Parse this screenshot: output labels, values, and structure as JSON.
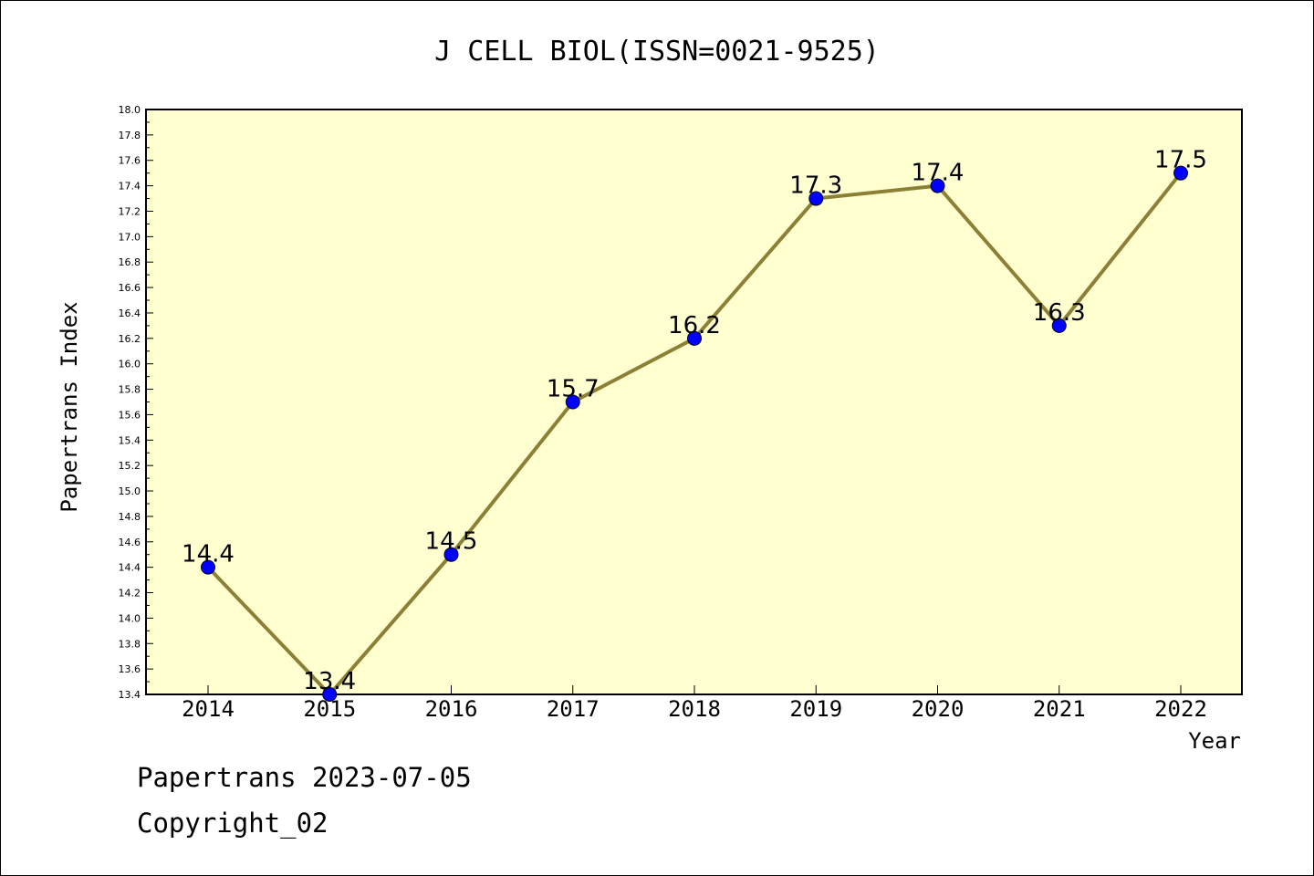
{
  "chart_data": {
    "type": "line",
    "title": "J CELL BIOL(ISSN=0021-9525)",
    "xlabel": "Year",
    "ylabel": "Papertrans Index",
    "categories": [
      "2014",
      "2015",
      "2016",
      "2017",
      "2018",
      "2019",
      "2020",
      "2021",
      "2022"
    ],
    "values": [
      14.4,
      13.4,
      14.5,
      15.7,
      16.2,
      17.3,
      17.4,
      16.3,
      17.5
    ],
    "data_labels": [
      "14.4",
      "13.4",
      "14.5",
      "15.7",
      "16.2",
      "17.3",
      "17.4",
      "16.3",
      "17.5"
    ],
    "ylim": [
      13.4,
      18.0
    ],
    "yticks": [
      "13.4",
      "13.6",
      "13.8",
      "14.0",
      "14.2",
      "14.4",
      "14.6",
      "14.8",
      "15.0",
      "15.2",
      "15.4",
      "15.6",
      "15.8",
      "16.0",
      "16.2",
      "16.4",
      "16.6",
      "16.8",
      "17.0",
      "17.2",
      "17.4",
      "17.6",
      "17.8",
      "18.0"
    ],
    "grid": false,
    "colors": {
      "plot_background": "#ffffd0",
      "line": "#8b8036",
      "marker": "#0000ff"
    }
  },
  "footer": {
    "source": "Papertrans 2023-07-05",
    "copyright": "Copyright_02"
  }
}
